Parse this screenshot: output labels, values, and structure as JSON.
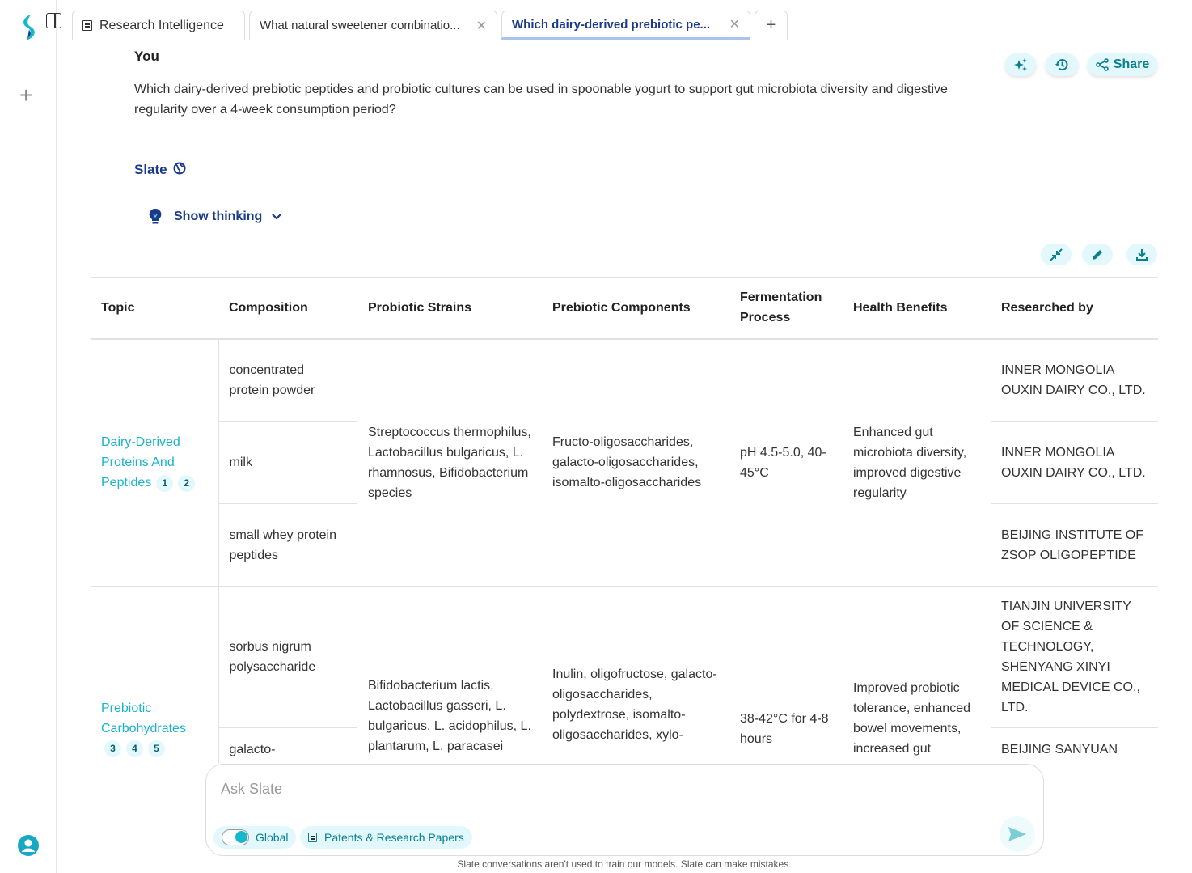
{
  "rail": {
    "logo": "slate-logo",
    "new_chat_icon": "plus-icon",
    "user_icon": "user-icon"
  },
  "tabs": [
    {
      "label": "Research Intelligence",
      "icon": "document-icon"
    },
    {
      "label": "What natural sweetener combinatio...",
      "closable": true
    },
    {
      "label": "Which dairy-derived prebiotic pe...",
      "closable": true,
      "active": true
    }
  ],
  "conversation": {
    "user_label": "You",
    "question": "Which dairy-derived prebiotic peptides and probiotic cultures can be used in spoonable yogurt to support gut microbiota diversity and digestive regularity over a 4-week consumption period?",
    "assistant_label": "Slate",
    "show_thinking": "Show thinking"
  },
  "actions": {
    "share": "Share"
  },
  "table": {
    "headers": [
      "Topic",
      "Composition",
      "Probiotic Strains",
      "Prebiotic Components",
      "Fermentation Process",
      "Health Benefits",
      "Researched by"
    ],
    "groups": [
      {
        "topic": "Dairy-Derived Proteins And Peptides",
        "refs": [
          "1",
          "2"
        ],
        "probiotic": "Streptococcus thermophilus, Lactobacillus bulgaricus, L. rhamnosus, Bifidobacterium species",
        "prebiotic": "Fructo-oligosaccharides, galacto-oligosaccharides, isomalto-oligosaccharides",
        "fermentation": "pH 4.5-5.0, 40-45°C",
        "benefits": "Enhanced gut microbiota diversity, improved digestive regularity",
        "rows": [
          {
            "composition": "concentrated protein powder",
            "researched_by": "INNER MONGOLIA OUXIN DAIRY CO., LTD."
          },
          {
            "composition": "milk",
            "researched_by": "INNER MONGOLIA OUXIN DAIRY CO., LTD."
          },
          {
            "composition": "small whey protein peptides",
            "researched_by": "BEIJING INSTITUTE OF ZSOP OLIGOPEPTIDE"
          }
        ]
      },
      {
        "topic": "Prebiotic Carbohydrates",
        "refs": [
          "3",
          "4",
          "5"
        ],
        "probiotic": "Bifidobacterium lactis, Lactobacillus gasseri, L. bulgaricus, L. acidophilus, L. plantarum, L. paracasei",
        "prebiotic": "Inulin, oligofructose, galacto-oligosaccharides, polydextrose, isomalto-oligosaccharides, xylo-",
        "fermentation": "38-42°C for 4-8 hours",
        "benefits": "Improved probiotic tolerance, enhanced bowel movements, increased gut",
        "rows": [
          {
            "composition": "sorbus nigrum polysaccharide",
            "researched_by": "TIANJIN UNIVERSITY OF SCIENCE & TECHNOLOGY, SHENYANG XINYI MEDICAL DEVICE CO., LTD."
          },
          {
            "composition": "galacto-",
            "researched_by": "BEIJING SANYUAN"
          }
        ]
      }
    ]
  },
  "composer": {
    "placeholder": "Ask Slate",
    "global_label": "Global",
    "global_on": true,
    "source_label": "Patents & Research Papers"
  },
  "footer": "Slate conversations aren't used to train our models. Slate can make mistakes.",
  "colors": {
    "accent": "#1bb3cc",
    "brand_blue": "#1a3a8a",
    "pill_bg": "#e2f8fd",
    "icon_teal": "#0a7f8e"
  }
}
